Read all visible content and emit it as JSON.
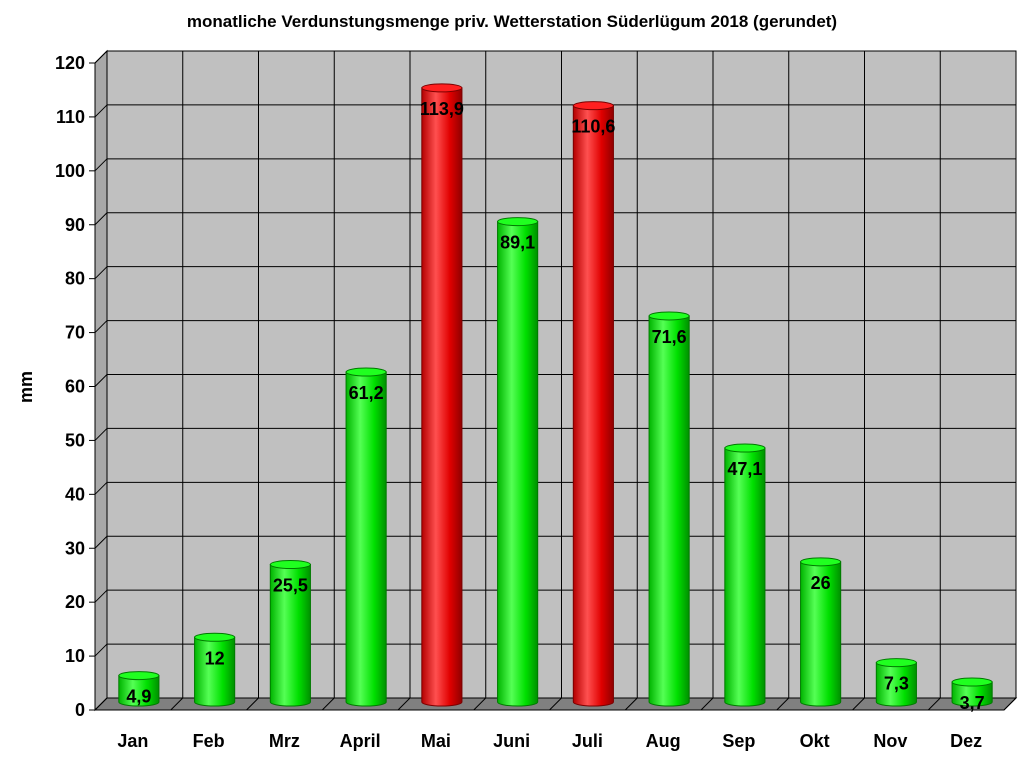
{
  "chart_data": {
    "type": "bar",
    "title": "monatliche Verdunstungsmenge priv. Wetterstation Süderlügum 2018 (gerundet)",
    "xlabel": "",
    "ylabel": "mm",
    "categories": [
      "Jan",
      "Feb",
      "Mrz",
      "April",
      "Mai",
      "Juni",
      "Juli",
      "Aug",
      "Sep",
      "Okt",
      "Nov",
      "Dez"
    ],
    "values": [
      4.9,
      12,
      25.5,
      61.2,
      113.9,
      89.1,
      110.6,
      71.6,
      47.1,
      26,
      7.3,
      3.7
    ],
    "value_labels": [
      "4,9",
      "12",
      "25,5",
      "61,2",
      "113,9",
      "89,1",
      "110,6",
      "71,6",
      "47,1",
      "26",
      "7,3",
      "3,7"
    ],
    "ylim": [
      0,
      120
    ],
    "yticks": [
      "0",
      "10",
      "20",
      "30",
      "40",
      "50",
      "60",
      "70",
      "80",
      "90",
      "100",
      "110",
      "120"
    ],
    "grid": true,
    "colors": {
      "normal": "#00ee00",
      "highlight": "#ee0000",
      "plot_background": "#c0c0c0",
      "floor": "#808080"
    },
    "highlighted_categories": [
      "Mai",
      "Juli"
    ]
  }
}
